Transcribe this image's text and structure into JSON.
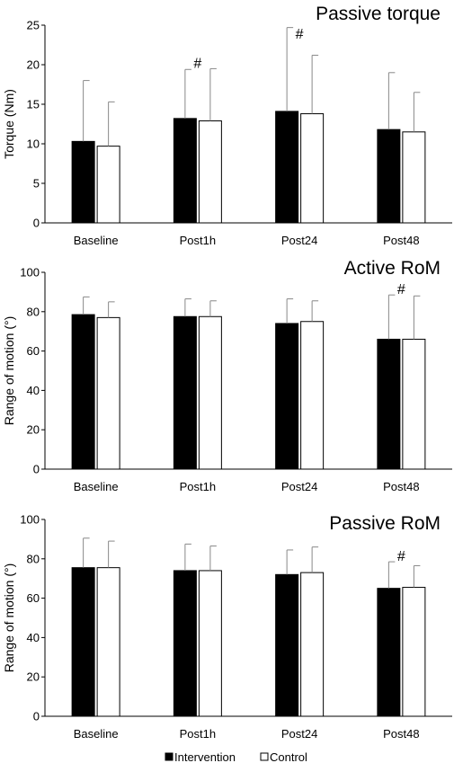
{
  "legend": [
    {
      "label": "Intervention",
      "color": "#000000"
    },
    {
      "label": "Control",
      "color": "#ffffff"
    }
  ],
  "chart_data": [
    {
      "type": "bar",
      "title": "Passive torque",
      "ylabel": "Torque (Nm)",
      "categories": [
        "Baseline",
        "Post1h",
        "Post24",
        "Post48"
      ],
      "ylim": [
        0,
        25
      ],
      "yticks": [
        0,
        5,
        10,
        15,
        20,
        25
      ],
      "series": [
        {
          "name": "Intervention",
          "color": "#000000",
          "values": [
            10.3,
            13.2,
            14.1,
            11.8
          ],
          "error": [
            7.7,
            6.2,
            10.6,
            7.2
          ]
        },
        {
          "name": "Control",
          "color": "#ffffff",
          "values": [
            9.7,
            12.9,
            13.8,
            11.5
          ],
          "error": [
            5.6,
            6.6,
            7.4,
            5.0
          ]
        }
      ],
      "annotations": [
        {
          "text": "#",
          "category": 1
        },
        {
          "text": "#",
          "category": 2
        }
      ]
    },
    {
      "type": "bar",
      "title": "Active RoM",
      "ylabel": "Range of motion (°)",
      "categories": [
        "Baseline",
        "Post1h",
        "Post24",
        "Post48"
      ],
      "ylim": [
        0,
        100
      ],
      "yticks": [
        0,
        20,
        40,
        60,
        80,
        100
      ],
      "series": [
        {
          "name": "Intervention",
          "color": "#000000",
          "values": [
            78.5,
            77.5,
            74,
            66
          ],
          "error": [
            9,
            9,
            12.5,
            22.5
          ]
        },
        {
          "name": "Control",
          "color": "#ffffff",
          "values": [
            77,
            77.5,
            75,
            66
          ],
          "error": [
            8,
            8,
            10.5,
            22
          ]
        }
      ],
      "annotations": [
        {
          "text": "#",
          "category": 3
        }
      ]
    },
    {
      "type": "bar",
      "title": "Passive RoM",
      "ylabel": "Range of motion (°)",
      "categories": [
        "Baseline",
        "Post1h",
        "Post24",
        "Post48"
      ],
      "ylim": [
        0,
        100
      ],
      "yticks": [
        0,
        20,
        40,
        60,
        80,
        100
      ],
      "series": [
        {
          "name": "Intervention",
          "color": "#000000",
          "values": [
            75.5,
            74,
            72,
            65
          ],
          "error": [
            15,
            13.5,
            12.5,
            13.5
          ]
        },
        {
          "name": "Control",
          "color": "#ffffff",
          "values": [
            75.5,
            74,
            73,
            65.5
          ],
          "error": [
            13.5,
            12.5,
            13,
            11
          ]
        }
      ],
      "annotations": [
        {
          "text": "#",
          "category": 3
        }
      ]
    }
  ]
}
